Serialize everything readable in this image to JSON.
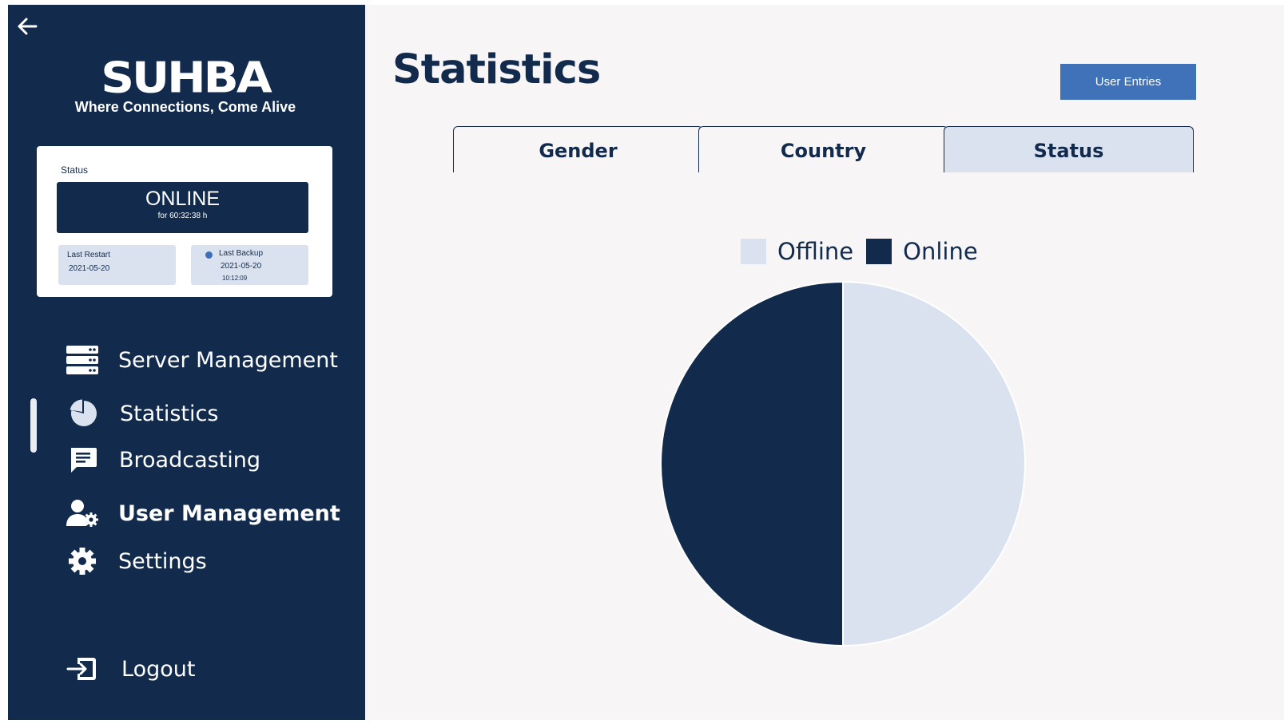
{
  "sidebar": {
    "logo_text": "SUHBA",
    "tagline": "Where Connections, Come Alive",
    "status_card": {
      "heading": "Status",
      "state": "ONLINE",
      "duration": "for 60:32:38 h",
      "last_restart_label": "Last Restart",
      "last_restart_value": "2021-05-20",
      "last_backup_label": "Last Backup",
      "last_backup_date": "2021-05-20",
      "last_backup_time": "10:12:09"
    },
    "nav": {
      "server_management": "Server Management",
      "statistics": "Statistics",
      "broadcasting": "Broadcasting",
      "user_management": "User Management",
      "settings": "Settings",
      "logout": "Logout"
    }
  },
  "main": {
    "title": "Statistics",
    "user_entries_button": "User Entries",
    "tabs": [
      "Gender",
      "Country",
      "Status"
    ],
    "active_tab": "Status"
  },
  "colors": {
    "navy": "#122b4c",
    "light": "#dbe2ef",
    "accent": "#3f72b8",
    "background": "#f7f5f6"
  },
  "icons": {
    "back": "arrow-left-icon",
    "server": "server-icon",
    "statistics": "pie-chart-icon",
    "broadcasting": "chat-icon",
    "user_management": "user-gear-icon",
    "settings": "gear-icon",
    "logout": "logout-icon"
  },
  "chart_data": {
    "type": "pie",
    "title": "",
    "legend": [
      "Offline",
      "Online"
    ],
    "legend_position": "top",
    "series": [
      {
        "name": "Offline",
        "value": 50,
        "color": "#dbe2ef"
      },
      {
        "name": "Online",
        "value": 50,
        "color": "#122b4c"
      }
    ]
  }
}
